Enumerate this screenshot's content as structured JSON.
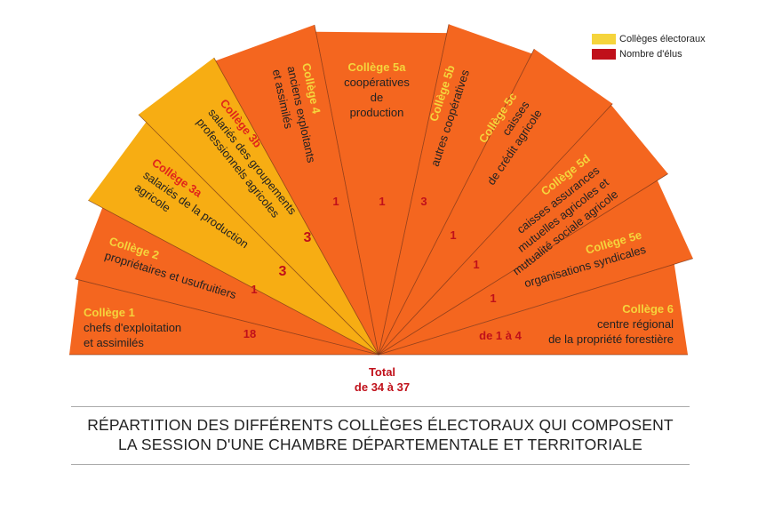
{
  "legend": {
    "items": [
      {
        "label": "Collèges électoraux",
        "color": "#f5d43c"
      },
      {
        "label": "Nombre d'élus",
        "color": "#c0101a"
      }
    ]
  },
  "colors": {
    "segment_orange": "#f4661f",
    "segment_yellow": "#f7ad13",
    "divider": "#6a2a10",
    "college_title": "#f5d43c",
    "college_title_on_yellow": "#e0251a",
    "seat_count": "#c0101a",
    "body_text": "#222222"
  },
  "colleges": [
    {
      "name": "Collège 1",
      "lines": [
        "chefs d'exploitation",
        "et assimilés"
      ],
      "seats": "18",
      "highlight": false
    },
    {
      "name": "Collège 2",
      "lines": [
        "propriétaires et usufruitiers"
      ],
      "seats": "1",
      "highlight": false
    },
    {
      "name": "Collège 3a",
      "lines": [
        "salariés de la production",
        "agricole"
      ],
      "seats": "3",
      "highlight": true
    },
    {
      "name": "Collège 3b",
      "lines": [
        "salariés des groupements",
        "professionnels agricoles"
      ],
      "seats": "3",
      "highlight": true
    },
    {
      "name": "Collège 4",
      "lines": [
        "anciens exploitants",
        "et assimilés"
      ],
      "seats": "1",
      "highlight": false
    },
    {
      "name": "Collège 5a",
      "lines": [
        "coopératives",
        "de",
        "production"
      ],
      "seats": "1",
      "highlight": false
    },
    {
      "name": "Collège 5b",
      "lines": [
        "autres coopératives"
      ],
      "seats": "3",
      "highlight": false
    },
    {
      "name": "Collège 5c",
      "lines": [
        "caisses",
        "de crédit agricole"
      ],
      "seats": "1",
      "highlight": false
    },
    {
      "name": "Collège 5d",
      "lines": [
        "caisses assurances",
        "mutuelles agricoles et",
        "mutualité sociale agricole"
      ],
      "seats": "1",
      "highlight": false
    },
    {
      "name": "Collège 5e",
      "lines": [
        "organisations syndicales"
      ],
      "seats": "1",
      "highlight": false
    },
    {
      "name": "Collège 6",
      "lines": [
        "centre régional",
        "de la propriété forestière"
      ],
      "seats": "de 1 à 4",
      "highlight": false
    }
  ],
  "total": {
    "label": "Total",
    "value": "de 34 à 37"
  },
  "caption": {
    "line1": "RÉPARTITION DES DIFFÉRENTS COLLÈGES ÉLECTORAUX QUI COMPOSENT",
    "line2": "LA SESSION D'UNE CHAMBRE DÉPARTEMENTALE ET TERRITORIALE"
  }
}
